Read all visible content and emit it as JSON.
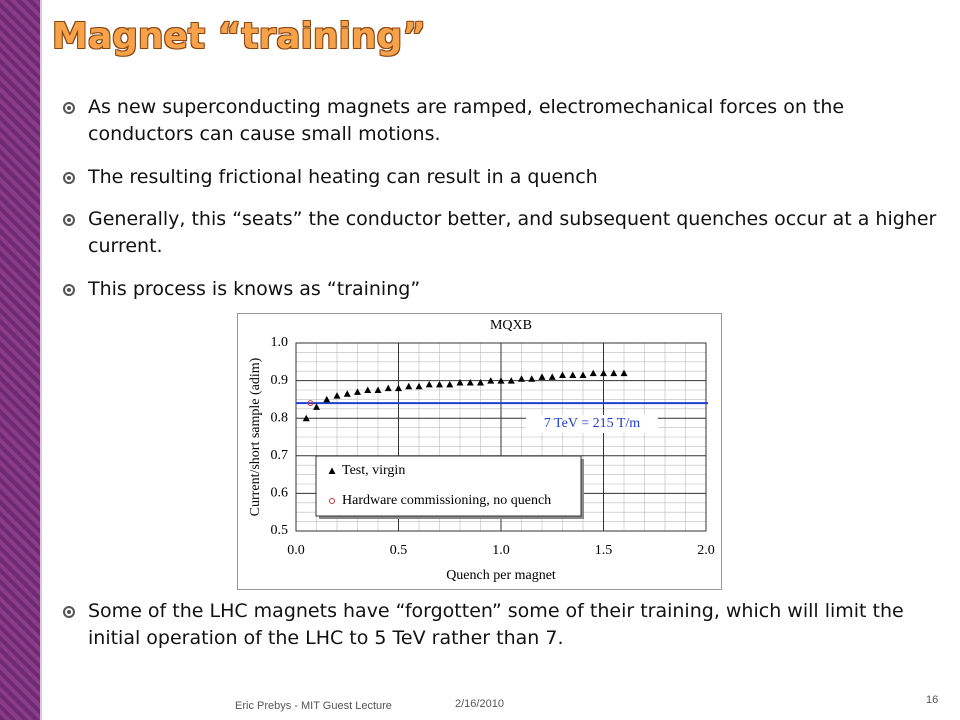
{
  "title": "Magnet “training”",
  "bullets_top": [
    "As new superconducting magnets are ramped, electromechanical forces on the conductors can cause small motions.",
    "The resulting frictional heating can result in a quench",
    "Generally, this “seats” the conductor better, and subsequent quenches occur at a higher current.",
    "This process is knows as “training”"
  ],
  "bullets_bottom": [
    "Some of the LHC magnets have “forgotten” some of their training, which will limit the initial operation of the LHC to 5 TeV rather than 7."
  ],
  "footer": {
    "author": "Eric Prebys - MIT Guest Lecture",
    "date": "2/16/2010",
    "page": "16"
  },
  "chart_data": {
    "type": "scatter",
    "title": "MQXB",
    "x_label": "Quench per magnet",
    "y_label": "Current/short sample (adim)",
    "xlim": [
      0,
      2.0
    ],
    "ylim": [
      0.5,
      1.0
    ],
    "xticks": [
      {
        "value": 0,
        "label": "0.0"
      },
      0.5,
      {
        "value": 1,
        "label": "1.0"
      },
      1.5,
      {
        "value": 2,
        "label": "2.0"
      }
    ],
    "yticks": [
      0.5,
      0.6,
      0.7,
      0.8,
      0.9,
      {
        "value": 1,
        "label": "1.0"
      }
    ],
    "grid": true,
    "reference_line": {
      "value": 0.84,
      "label": "7 TeV = 215 T/m",
      "color": "#1f3fcf"
    },
    "series": [
      {
        "name": "Test, virgin",
        "color": "#000000",
        "marker": "triangle",
        "x": [
          0.05,
          0.1,
          0.15,
          0.2,
          0.25,
          0.3,
          0.35,
          0.4,
          0.45,
          0.5,
          0.55,
          0.6,
          0.65,
          0.7,
          0.75,
          0.8,
          0.85,
          0.9,
          0.95,
          1.0,
          1.05,
          1.1,
          1.15,
          1.2,
          1.25,
          1.3,
          1.35,
          1.4,
          1.45,
          1.5,
          1.55,
          1.6
        ],
        "values": [
          0.8,
          0.83,
          0.85,
          0.86,
          0.865,
          0.87,
          0.875,
          0.875,
          0.88,
          0.88,
          0.885,
          0.885,
          0.89,
          0.89,
          0.89,
          0.895,
          0.895,
          0.895,
          0.9,
          0.9,
          0.9,
          0.905,
          0.905,
          0.91,
          0.91,
          0.915,
          0.915,
          0.915,
          0.92,
          0.92,
          0.92,
          0.92
        ]
      },
      {
        "name": "Hardware commissioning, no quench",
        "color": "#c03a3a",
        "marker": "circle",
        "x": [
          0.07
        ],
        "values": [
          0.84
        ]
      }
    ]
  }
}
